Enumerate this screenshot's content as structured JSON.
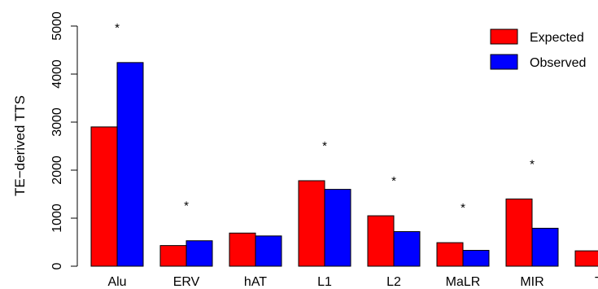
{
  "chart_data": {
    "type": "bar",
    "ylabel": "TE−derived TTS",
    "xlabel": "",
    "title": "",
    "ylim": [
      0,
      5000
    ],
    "yticks": [
      0,
      1000,
      2000,
      3000,
      4000,
      5000
    ],
    "categories": [
      "Alu",
      "ERV",
      "hAT",
      "L1",
      "L2",
      "MaLR",
      "MIR",
      "TcMar"
    ],
    "category_labels": [
      "Alu",
      "ERV",
      "hAT",
      "L1",
      "L2",
      "MaLR",
      "MIR",
      "Tc"
    ],
    "series": [
      {
        "name": "Expected",
        "color": "#ff0000",
        "values": [
          2900,
          430,
          690,
          1780,
          1050,
          490,
          1400,
          320
        ]
      },
      {
        "name": "Observed",
        "color": "#0000ff",
        "values": [
          4240,
          530,
          630,
          1600,
          720,
          330,
          790,
          null
        ]
      }
    ],
    "annotations": [
      "*",
      "*",
      "",
      "*",
      "*",
      "*",
      "*",
      ""
    ],
    "legend": {
      "position": "top-right",
      "entries": [
        "Expected",
        "Observed"
      ]
    },
    "grid": false
  }
}
